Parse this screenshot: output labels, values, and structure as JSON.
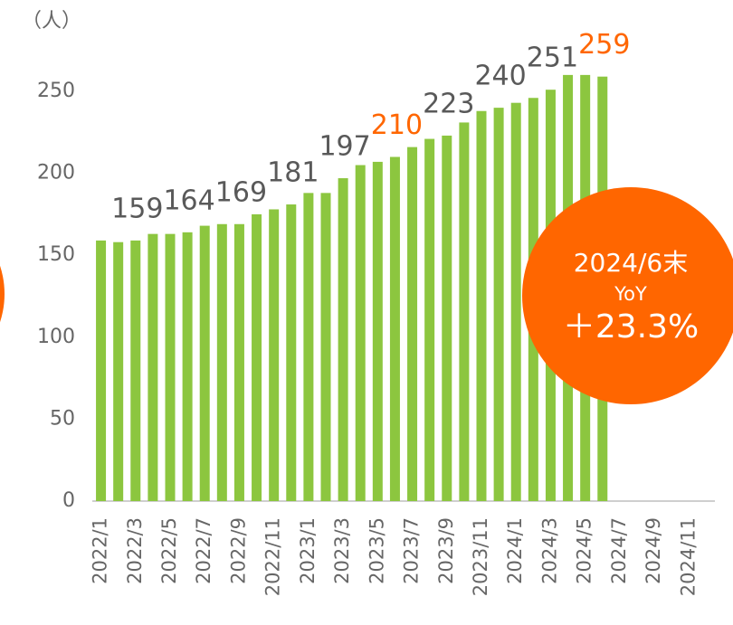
{
  "chart_data": {
    "type": "bar",
    "y_axis_label": "（人）",
    "categories": [
      "2022/1",
      null,
      "2022/3",
      null,
      "2022/5",
      null,
      "2022/7",
      null,
      "2022/9",
      null,
      "2022/11",
      null,
      "2023/1",
      null,
      "2023/3",
      null,
      "2023/5",
      null,
      "2023/7",
      null,
      "2023/9",
      null,
      "2023/11",
      null,
      "2024/1",
      null,
      "2024/3",
      null,
      "2024/5",
      null,
      "2024/7",
      null,
      "2024/9",
      null,
      "2024/11",
      null
    ],
    "values": [
      159,
      158,
      159,
      163,
      163,
      164,
      168,
      169,
      169,
      175,
      178,
      181,
      188,
      188,
      197,
      205,
      207,
      210,
      216,
      221,
      223,
      231,
      238,
      240,
      243,
      246,
      251,
      260,
      260,
      259,
      null,
      null,
      null,
      null,
      null,
      null
    ],
    "value_labels": [
      null,
      null,
      "159",
      null,
      null,
      "164",
      null,
      null,
      "169",
      null,
      null,
      "181",
      null,
      null,
      "197",
      null,
      null,
      "210",
      null,
      null,
      "223",
      null,
      null,
      "240",
      null,
      null,
      "251",
      null,
      null,
      "259",
      null,
      null,
      null,
      null,
      null,
      null
    ],
    "value_label_colors": [
      null,
      null,
      "#595959",
      null,
      null,
      "#595959",
      null,
      null,
      "#595959",
      null,
      null,
      "#595959",
      null,
      null,
      "#595959",
      null,
      null,
      "#ff6600",
      null,
      null,
      "#595959",
      null,
      null,
      "#595959",
      null,
      null,
      "#595959",
      null,
      null,
      "#ff6600",
      null,
      null,
      null,
      null,
      null,
      null
    ],
    "color": "#8cc63f",
    "ylim": [
      0,
      250
    ],
    "yticks": [
      0,
      50,
      100,
      150,
      200,
      250
    ],
    "grid": false,
    "annotation": {
      "lines": [
        "2024/6末",
        "YoY",
        "＋23.3%"
      ],
      "color": "#ff6600"
    }
  }
}
